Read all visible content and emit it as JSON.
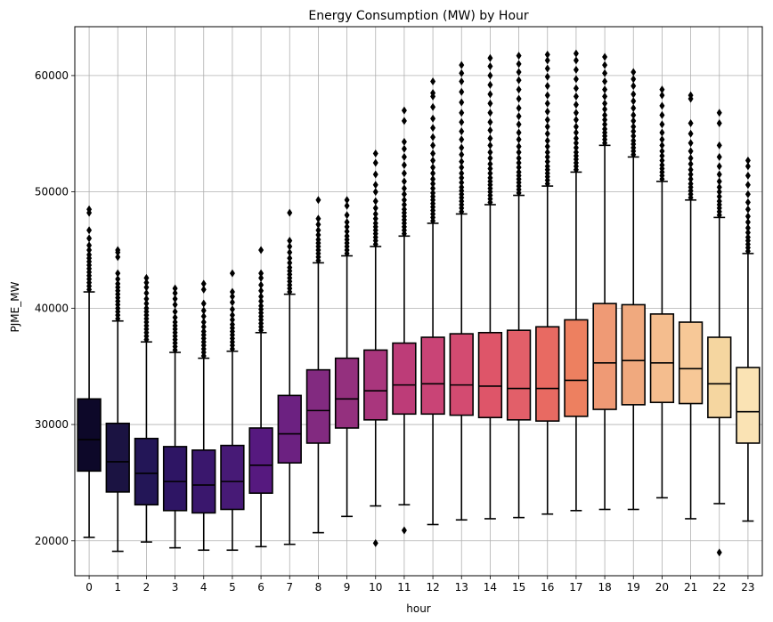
{
  "chart_data": {
    "type": "boxplot",
    "title": "Energy Consumption (MW) by Hour",
    "xlabel": "hour",
    "ylabel": "PJME_MW",
    "ylim": [
      17000,
      64200
    ],
    "yticks": [
      20000,
      30000,
      40000,
      50000,
      60000
    ],
    "grid": true,
    "legend": "none",
    "categories": [
      "0",
      "1",
      "2",
      "3",
      "4",
      "5",
      "6",
      "7",
      "8",
      "9",
      "10",
      "11",
      "12",
      "13",
      "14",
      "15",
      "16",
      "17",
      "18",
      "19",
      "20",
      "21",
      "22",
      "23"
    ],
    "colors": [
      "#0d0829",
      "#1b1342",
      "#231657",
      "#2e1564",
      "#3a176d",
      "#471a76",
      "#56197f",
      "#6c2181",
      "#822a80",
      "#94307e",
      "#a9367d",
      "#bd3c78",
      "#c94476",
      "#d34b71",
      "#de5569",
      "#e25f69",
      "#e86a62",
      "#ed8060",
      "#ef9a75",
      "#f0a97e",
      "#f4bd8e",
      "#f7c897",
      "#f5d6a0",
      "#fae3b4"
    ],
    "series": [
      {
        "name": "",
        "boxes": [
          {
            "whislo": 20300,
            "q1": 26000,
            "med": 28700,
            "q3": 32200,
            "whishi": 41400,
            "fliers": [
              41600,
              41900,
              42200,
              42500,
              42800,
              43100,
              43400,
              43700,
              44000,
              44300,
              44600,
              45000,
              45400,
              46000,
              46700,
              48200,
              48500
            ]
          },
          {
            "whislo": 19100,
            "q1": 24200,
            "med": 26800,
            "q3": 30100,
            "whishi": 38900,
            "fliers": [
              39100,
              39400,
              39700,
              40000,
              40300,
              40600,
              40900,
              41200,
              41500,
              41800,
              42100,
              42500,
              43000,
              44400,
              44800,
              45000
            ]
          },
          {
            "whislo": 19900,
            "q1": 23100,
            "med": 25800,
            "q3": 28800,
            "whishi": 37100,
            "fliers": [
              37300,
              37600,
              37900,
              38200,
              38500,
              38800,
              39100,
              39400,
              39700,
              40000,
              40400,
              40800,
              41300,
              41800,
              42200,
              42600
            ]
          },
          {
            "whislo": 19400,
            "q1": 22600,
            "med": 25100,
            "q3": 28100,
            "whishi": 36200,
            "fliers": [
              36400,
              36700,
              37000,
              37300,
              37600,
              37900,
              38200,
              38500,
              38800,
              39200,
              39700,
              40300,
              40800,
              41300,
              41700
            ]
          },
          {
            "whislo": 19200,
            "q1": 22400,
            "med": 24800,
            "q3": 27800,
            "whishi": 35700,
            "fliers": [
              35900,
              36200,
              36500,
              36800,
              37100,
              37400,
              37700,
              38000,
              38400,
              38800,
              39300,
              39800,
              40400,
              41600,
              42100
            ]
          },
          {
            "whislo": 19200,
            "q1": 22700,
            "med": 25100,
            "q3": 28200,
            "whishi": 36300,
            "fliers": [
              36500,
              36800,
              37100,
              37400,
              37700,
              38000,
              38300,
              38600,
              39000,
              39400,
              39900,
              40500,
              41000,
              41400,
              43000
            ]
          },
          {
            "whislo": 19500,
            "q1": 24100,
            "med": 26500,
            "q3": 29700,
            "whishi": 37900,
            "fliers": [
              38100,
              38400,
              38700,
              39000,
              39300,
              39600,
              39900,
              40200,
              40600,
              41000,
              41500,
              42000,
              42600,
              43000,
              45000
            ]
          },
          {
            "whislo": 19700,
            "q1": 26700,
            "med": 29200,
            "q3": 32500,
            "whishi": 41200,
            "fliers": [
              41400,
              41700,
              42000,
              42300,
              42600,
              42900,
              43200,
              43500,
              43900,
              44300,
              44800,
              45300,
              45800,
              48200
            ]
          },
          {
            "whislo": 20700,
            "q1": 28400,
            "med": 31200,
            "q3": 34700,
            "whishi": 43900,
            "fliers": [
              44100,
              44400,
              44700,
              45000,
              45300,
              45600,
              45900,
              46300,
              46700,
              47200,
              47700,
              49300
            ]
          },
          {
            "whislo": 22100,
            "q1": 29700,
            "med": 32200,
            "q3": 35700,
            "whishi": 44500,
            "fliers": [
              44700,
              45000,
              45300,
              45600,
              45900,
              46200,
              46600,
              47000,
              47400,
              48000,
              48800,
              49300
            ]
          },
          {
            "whislo": 23000,
            "q1": 30400,
            "med": 32900,
            "q3": 36400,
            "whishi": 45300,
            "fliers": [
              19800,
              45500,
              45800,
              46100,
              46400,
              46700,
              47000,
              47300,
              47700,
              48100,
              48600,
              49200,
              50000,
              50600,
              51500,
              52500,
              53300
            ]
          },
          {
            "whislo": 23100,
            "q1": 30900,
            "med": 33400,
            "q3": 37000,
            "whishi": 46200,
            "fliers": [
              20900,
              46400,
              46700,
              47000,
              47300,
              47600,
              47900,
              48200,
              48500,
              48900,
              49300,
              49800,
              50300,
              50900,
              51600,
              52300,
              53000,
              53700,
              54300,
              56100,
              57000
            ]
          },
          {
            "whislo": 21400,
            "q1": 30900,
            "med": 33500,
            "q3": 37500,
            "whishi": 47300,
            "fliers": [
              47500,
              47800,
              48100,
              48400,
              48700,
              49000,
              49300,
              49600,
              49900,
              50300,
              50700,
              51100,
              51600,
              52100,
              52700,
              53300,
              54000,
              54700,
              55500,
              56300,
              57300,
              58200,
              58500,
              59500
            ]
          },
          {
            "whislo": 21800,
            "q1": 30800,
            "med": 33400,
            "q3": 37800,
            "whishi": 48100,
            "fliers": [
              48300,
              48600,
              48900,
              49200,
              49500,
              49800,
              50100,
              50400,
              50800,
              51200,
              51600,
              52100,
              52600,
              53200,
              53800,
              54500,
              55200,
              56000,
              56800,
              57700,
              58600,
              59500,
              60200,
              60900
            ]
          },
          {
            "whislo": 21900,
            "q1": 30600,
            "med": 33300,
            "q3": 37900,
            "whishi": 48900,
            "fliers": [
              49100,
              49400,
              49700,
              50000,
              50300,
              50600,
              50900,
              51200,
              51600,
              52000,
              52400,
              52900,
              53400,
              54000,
              54600,
              55300,
              56000,
              56800,
              57600,
              58400,
              59200,
              60000,
              60800,
              61500
            ]
          },
          {
            "whislo": 22000,
            "q1": 30400,
            "med": 33100,
            "q3": 38100,
            "whishi": 49700,
            "fliers": [
              49900,
              50200,
              50500,
              50800,
              51100,
              51400,
              51700,
              52100,
              52500,
              52900,
              53400,
              53900,
              54500,
              55100,
              55800,
              56500,
              57200,
              58000,
              58800,
              59600,
              60300,
              61000,
              61700
            ]
          },
          {
            "whislo": 22300,
            "q1": 30300,
            "med": 33100,
            "q3": 38400,
            "whishi": 50500,
            "fliers": [
              50700,
              51000,
              51300,
              51600,
              51900,
              52200,
              52600,
              53000,
              53400,
              53900,
              54400,
              55000,
              55600,
              56200,
              56900,
              57600,
              58300,
              59100,
              59900,
              60600,
              61300,
              61800
            ]
          },
          {
            "whislo": 22600,
            "q1": 30700,
            "med": 33800,
            "q3": 39000,
            "whishi": 51700,
            "fliers": [
              51900,
              52200,
              52500,
              52800,
              53100,
              53400,
              53800,
              54200,
              54600,
              55100,
              55600,
              56200,
              56800,
              57500,
              58200,
              58900,
              59700,
              60500,
              61300,
              61900
            ]
          },
          {
            "whislo": 22700,
            "q1": 31300,
            "med": 35300,
            "q3": 40400,
            "whishi": 54000,
            "fliers": [
              54200,
              54500,
              54800,
              55100,
              55400,
              55800,
              56200,
              56600,
              57100,
              57600,
              58200,
              58800,
              59500,
              60200,
              60900,
              61600
            ]
          },
          {
            "whislo": 22700,
            "q1": 31700,
            "med": 35500,
            "q3": 40300,
            "whishi": 53000,
            "fliers": [
              53200,
              53500,
              53800,
              54100,
              54400,
              54800,
              55200,
              55600,
              56100,
              56600,
              57200,
              57800,
              58400,
              59100,
              59700,
              60300
            ]
          },
          {
            "whislo": 23700,
            "q1": 31900,
            "med": 35300,
            "q3": 39500,
            "whishi": 50900,
            "fliers": [
              51100,
              51400,
              51700,
              52000,
              52300,
              52700,
              53100,
              53500,
              54000,
              54500,
              55100,
              55800,
              56600,
              57400,
              58300,
              58800
            ]
          },
          {
            "whislo": 21900,
            "q1": 31800,
            "med": 34800,
            "q3": 38800,
            "whishi": 49300,
            "fliers": [
              49500,
              49800,
              50100,
              50400,
              50700,
              51100,
              51500,
              51900,
              52400,
              52900,
              53500,
              54200,
              55000,
              55900,
              58000,
              58300
            ]
          },
          {
            "whislo": 23200,
            "q1": 30600,
            "med": 33500,
            "q3": 37500,
            "whishi": 47800,
            "fliers": [
              19000,
              48000,
              48300,
              48600,
              48900,
              49200,
              49600,
              50000,
              50400,
              50900,
              51500,
              52200,
              53000,
              54000,
              55900,
              56800
            ]
          },
          {
            "whislo": 21700,
            "q1": 28400,
            "med": 31100,
            "q3": 34900,
            "whishi": 44700,
            "fliers": [
              44900,
              45200,
              45500,
              45800,
              46100,
              46500,
              46900,
              47400,
              47900,
              48500,
              49100,
              49800,
              50600,
              51400,
              52200,
              52700
            ]
          }
        ]
      }
    ]
  }
}
